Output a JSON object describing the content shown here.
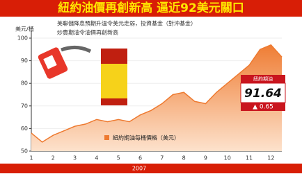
{
  "chart_data": {
    "type": "area",
    "title": "紐約油價再創新高 逼近92美元關口",
    "subtitle": [
      "美聯儲降息預期升溫令美元走弱，投資基金（對沖基金）",
      "炒賣期油令油價再創新高"
    ],
    "y_label": "美元/桶",
    "categories": [
      "1",
      null,
      "2",
      null,
      "3",
      null,
      "4",
      null,
      "5",
      null,
      "6",
      null,
      "7",
      null,
      "8",
      null,
      "9",
      null,
      "10",
      null,
      "11",
      null,
      "12",
      null
    ],
    "series": [
      {
        "name": "紐約期油每桶價格（美元）",
        "color": "#ee7a30",
        "values": [
          58,
          54,
          57,
          59,
          61,
          62,
          64,
          63,
          64,
          63,
          66,
          68,
          71,
          75,
          76,
          72,
          71,
          76,
          80,
          84,
          88,
          95,
          97,
          91.64
        ]
      }
    ],
    "ylim": [
      50,
      100
    ],
    "yticks": [
      50,
      60,
      70,
      80,
      90,
      100
    ],
    "latest": {
      "label": "紐約期油",
      "value": 91.64,
      "change_label": "▲ 0.65"
    },
    "year": "2007"
  }
}
